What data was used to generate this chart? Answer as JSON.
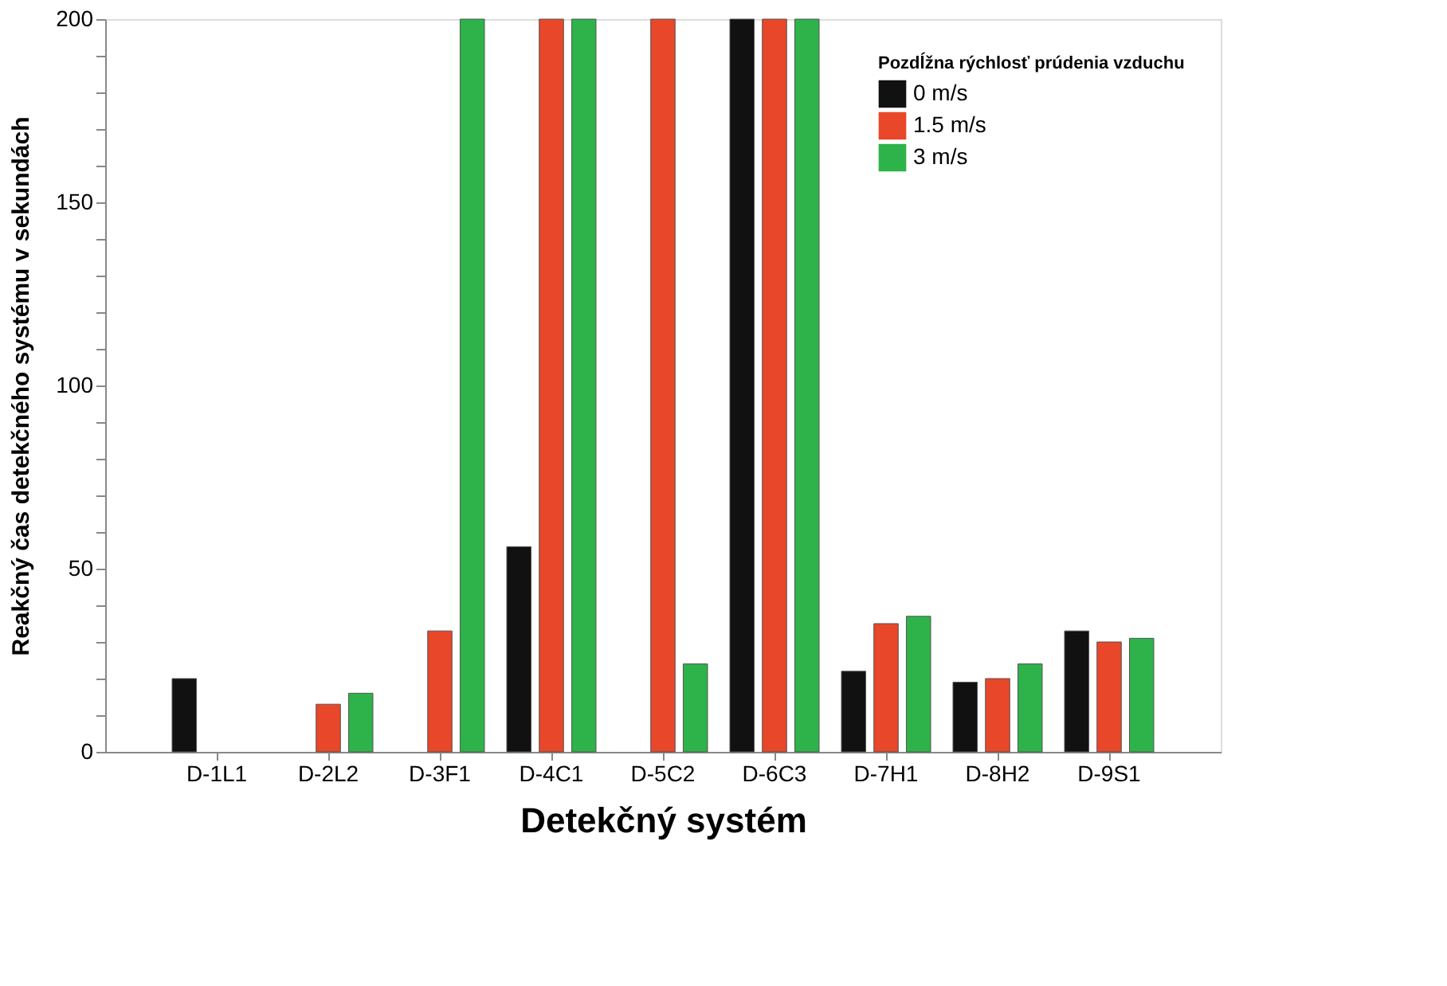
{
  "chart_data": {
    "type": "bar",
    "xlabel": "Detekčný systém",
    "ylabel": "Reakčný čas detekčného systému v sekundách",
    "legend_title": "Pozdĺžna rýchlosť prúdenia vzduchu",
    "categories": [
      "D-1L1",
      "D-2L2",
      "D-3F1",
      "D-4C1",
      "D-5C2",
      "D-6C3",
      "D-7H1",
      "D-8H2",
      "D-9S1"
    ],
    "series": [
      {
        "name": "0 m/s",
        "color": "#111111",
        "values": [
          20,
          null,
          null,
          56,
          null,
          200,
          22,
          19,
          33
        ]
      },
      {
        "name": "1.5 m/s",
        "color": "#e8472a",
        "values": [
          null,
          13,
          33,
          200,
          200,
          200,
          35,
          20,
          30
        ]
      },
      {
        "name": "3 m/s",
        "color": "#2db34a",
        "values": [
          null,
          16,
          200,
          200,
          24,
          200,
          37,
          24,
          31
        ]
      }
    ],
    "ylim": [
      0,
      200
    ],
    "yticks": [
      0,
      {
        "value": 10,
        "label": null
      },
      {
        "value": 20,
        "label": null
      },
      {
        "value": 30,
        "label": null
      },
      {
        "value": 40,
        "label": null
      },
      50,
      {
        "value": 60,
        "label": null
      },
      {
        "value": 70,
        "label": null
      },
      {
        "value": 80,
        "label": null
      },
      {
        "value": 90,
        "label": null
      },
      100,
      {
        "value": 110,
        "label": null
      },
      {
        "value": 120,
        "label": null
      },
      {
        "value": 130,
        "label": null
      },
      {
        "value": 140,
        "label": null
      },
      150,
      {
        "value": 160,
        "label": null
      },
      {
        "value": 170,
        "label": null
      },
      {
        "value": 180,
        "label": null
      },
      {
        "value": 190,
        "label": null
      },
      200
    ],
    "grid": false,
    "legend": "top right"
  }
}
